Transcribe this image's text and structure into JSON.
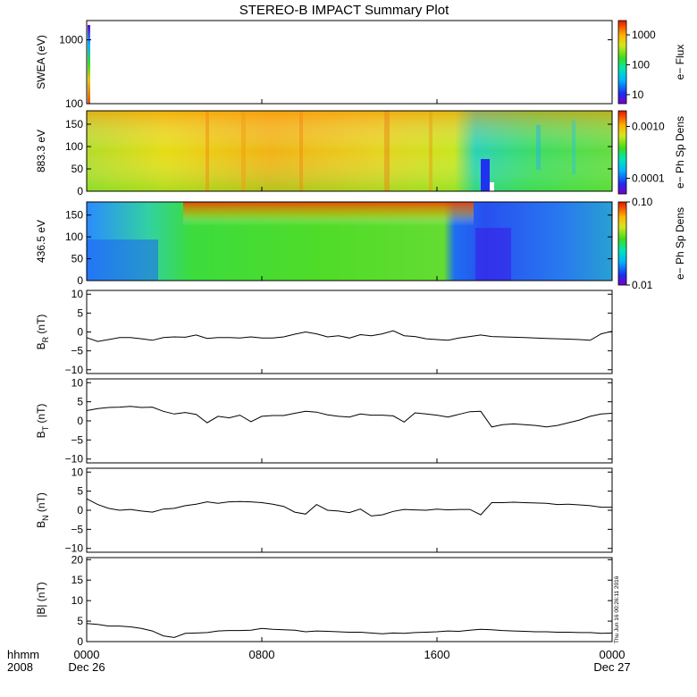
{
  "title": "STEREO-B IMPACT Summary Plot",
  "timestamp_note": "Thu Jun 16 00:26:11 2016",
  "x_axis": {
    "row1_label": "hhmm",
    "row2_label": "2008",
    "range_hours": [
      0,
      24
    ],
    "ticks": [
      {
        "hour": 0,
        "label": "0000",
        "sub": "Dec 26"
      },
      {
        "hour": 8,
        "label": "0800",
        "sub": ""
      },
      {
        "hour": 16,
        "label": "1600",
        "sub": ""
      },
      {
        "hour": 24,
        "label": "0000",
        "sub": "Dec 27"
      }
    ]
  },
  "chart_data": [
    {
      "id": "swea",
      "type": "heatmap",
      "ylabel": "SWEA (eV)",
      "yscale": "log",
      "ylim": [
        100,
        2000
      ],
      "ytick_labels": [
        "1000",
        "100"
      ],
      "ytick_values": [
        1000,
        100
      ],
      "colorbar": {
        "label": "e− Flux",
        "scale": "log",
        "range": [
          5,
          3000
        ],
        "tick_labels": [
          "1000",
          "100",
          "10"
        ],
        "tick_values": [
          1000,
          100,
          10
        ]
      },
      "note": "data only at start of interval"
    },
    {
      "id": "pad_883",
      "type": "heatmap",
      "ylabel": "883.3 eV",
      "ylim": [
        0,
        180
      ],
      "ytick_labels": [
        "150",
        "100",
        "50",
        "0"
      ],
      "ytick_values": [
        150,
        100,
        50,
        0
      ],
      "colorbar": {
        "label": "e− Ph Sp Dens",
        "scale": "log",
        "range": [
          5e-05,
          0.002
        ],
        "tick_labels": [
          "0.0010",
          "0.0001"
        ],
        "tick_values": [
          0.001,
          0.0001
        ]
      }
    },
    {
      "id": "pad_436",
      "type": "heatmap",
      "ylabel": "436.5 eV",
      "ylim": [
        0,
        180
      ],
      "ytick_labels": [
        "150",
        "100",
        "50",
        "0"
      ],
      "ytick_values": [
        150,
        100,
        50,
        0
      ],
      "colorbar": {
        "label": "e− Ph Sp Dens",
        "scale": "log",
        "range": [
          0.01,
          0.1
        ],
        "tick_labels": [
          "0.10",
          "0.01"
        ],
        "tick_values": [
          0.1,
          0.01
        ]
      }
    },
    {
      "id": "br",
      "type": "line",
      "ylabel": "B",
      "ylabel_sub": "R",
      "ylabel_unit": " (nT)",
      "ylim": [
        -11,
        11
      ],
      "ytick_labels": [
        "10",
        "5",
        "0",
        "−5",
        "−10"
      ],
      "ytick_values": [
        10,
        5,
        0,
        -5,
        -10
      ],
      "x": [
        0,
        0.5,
        1,
        1.5,
        2,
        2.5,
        3,
        3.5,
        4,
        4.5,
        5,
        5.5,
        6,
        6.5,
        7,
        7.5,
        8,
        8.5,
        9,
        9.5,
        10,
        10.5,
        11,
        11.5,
        12,
        12.5,
        13,
        13.5,
        14,
        14.5,
        15,
        15.5,
        16,
        16.5,
        17,
        17.5,
        18,
        18.5,
        19,
        19.5,
        20,
        20.5,
        21,
        21.5,
        22,
        22.5,
        23,
        23.5,
        24
      ],
      "y": [
        -1.5,
        -2.5,
        -2,
        -1.5,
        -1.5,
        -1.8,
        -2.2,
        -1.5,
        -1.3,
        -1.4,
        -0.8,
        -1.7,
        -1.5,
        -1.5,
        -1.6,
        -1.3,
        -1.6,
        -1.6,
        -1.3,
        -0.6,
        0,
        -0.5,
        -1.3,
        -1,
        -1.6,
        -0.7,
        -1,
        -0.5,
        0.3,
        -1,
        -1.2,
        -1.8,
        -2,
        -2.2,
        -1.6,
        -1.2,
        -0.8,
        -1.2,
        -1.3,
        -1.4,
        -1.5,
        -1.6,
        -1.7,
        -1.8,
        -1.9,
        -2,
        -2.2,
        -0.5,
        0.2
      ]
    },
    {
      "id": "bt",
      "type": "line",
      "ylabel": "B",
      "ylabel_sub": "T",
      "ylabel_unit": " (nT)",
      "ylim": [
        -11,
        11
      ],
      "ytick_labels": [
        "10",
        "5",
        "0",
        "−5",
        "−10"
      ],
      "ytick_values": [
        10,
        5,
        0,
        -5,
        -10
      ],
      "x": [
        0,
        0.5,
        1,
        1.5,
        2,
        2.5,
        3,
        3.5,
        4,
        4.5,
        5,
        5.5,
        6,
        6.5,
        7,
        7.5,
        8,
        8.5,
        9,
        9.5,
        10,
        10.5,
        11,
        11.5,
        12,
        12.5,
        13,
        13.5,
        14,
        14.5,
        15,
        15.5,
        16,
        16.5,
        17,
        17.5,
        18,
        18.5,
        19,
        19.5,
        20,
        20.5,
        21,
        21.5,
        22,
        22.5,
        23,
        23.5,
        24
      ],
      "y": [
        2.7,
        3.2,
        3.5,
        3.6,
        3.8,
        3.5,
        3.6,
        2.5,
        1.8,
        2.2,
        1.7,
        -0.5,
        1.2,
        0.8,
        1.5,
        -0.2,
        1.2,
        1.4,
        1.4,
        2,
        2.5,
        2.3,
        1.6,
        1.2,
        1,
        1.8,
        1.5,
        1.5,
        1.3,
        -0.3,
        2.1,
        1.8,
        1.5,
        1,
        1.7,
        2.4,
        2.5,
        -1.6,
        -1,
        -0.8,
        -1,
        -1.2,
        -1.6,
        -1.2,
        -0.5,
        0.2,
        1.2,
        1.8,
        2
      ]
    },
    {
      "id": "bn",
      "type": "line",
      "ylabel": "B",
      "ylabel_sub": "N",
      "ylabel_unit": " (nT)",
      "ylim": [
        -11,
        11
      ],
      "ytick_labels": [
        "10",
        "5",
        "0",
        "−5",
        "−10"
      ],
      "ytick_values": [
        10,
        5,
        0,
        -5,
        -10
      ],
      "x": [
        0,
        0.5,
        1,
        1.5,
        2,
        2.5,
        3,
        3.5,
        4,
        4.5,
        5,
        5.5,
        6,
        6.5,
        7,
        7.5,
        8,
        8.5,
        9,
        9.5,
        10,
        10.5,
        11,
        11.5,
        12,
        12.5,
        13,
        13.5,
        14,
        14.5,
        15,
        15.5,
        16,
        16.5,
        17,
        17.5,
        18,
        18.5,
        19,
        19.5,
        20,
        20.5,
        21,
        21.5,
        22,
        22.5,
        23,
        23.5,
        24
      ],
      "y": [
        3,
        1.5,
        0.5,
        0,
        0.2,
        -0.2,
        -0.5,
        0.3,
        0.5,
        1.2,
        1.6,
        2.2,
        1.8,
        2.2,
        2.3,
        2.2,
        2,
        1.6,
        1,
        -0.5,
        -1,
        1.5,
        0,
        -0.2,
        -0.6,
        0.3,
        -1.5,
        -1.2,
        -0.3,
        0.2,
        0.1,
        0,
        0.3,
        0.1,
        0.2,
        0.2,
        -1.2,
        2,
        2,
        2.1,
        2,
        1.9,
        1.8,
        1.5,
        1.6,
        1.4,
        1.2,
        0.8,
        0.8
      ]
    },
    {
      "id": "bmag",
      "type": "line",
      "ylabel": "|B| (nT)",
      "ylim": [
        0,
        20.5
      ],
      "ytick_labels": [
        "20",
        "15",
        "10",
        "5",
        "0"
      ],
      "ytick_values": [
        20,
        15,
        10,
        5,
        0
      ],
      "x": [
        0,
        0.5,
        1,
        1.5,
        2,
        2.5,
        3,
        3.5,
        4,
        4.5,
        5,
        5.5,
        6,
        6.5,
        7,
        7.5,
        8,
        8.5,
        9,
        9.5,
        10,
        10.5,
        11,
        11.5,
        12,
        12.5,
        13,
        13.5,
        14,
        14.5,
        15,
        15.5,
        16,
        16.5,
        17,
        17.5,
        18,
        18.5,
        19,
        19.5,
        20,
        20.5,
        21,
        21.5,
        22,
        22.5,
        23,
        23.5,
        24
      ],
      "y": [
        4.4,
        4.2,
        3.8,
        3.8,
        3.6,
        3.2,
        2.6,
        1.4,
        1,
        2,
        2.1,
        2.2,
        2.6,
        2.7,
        2.7,
        2.8,
        3.2,
        3,
        2.9,
        2.8,
        2.4,
        2.6,
        2.5,
        2.4,
        2.3,
        2.3,
        2.1,
        1.9,
        2.1,
        2,
        2.2,
        2.3,
        2.4,
        2.6,
        2.5,
        2.8,
        3,
        2.9,
        2.7,
        2.6,
        2.5,
        2.4,
        2.4,
        2.3,
        2.3,
        2.2,
        2.2,
        2,
        2.1
      ]
    }
  ]
}
